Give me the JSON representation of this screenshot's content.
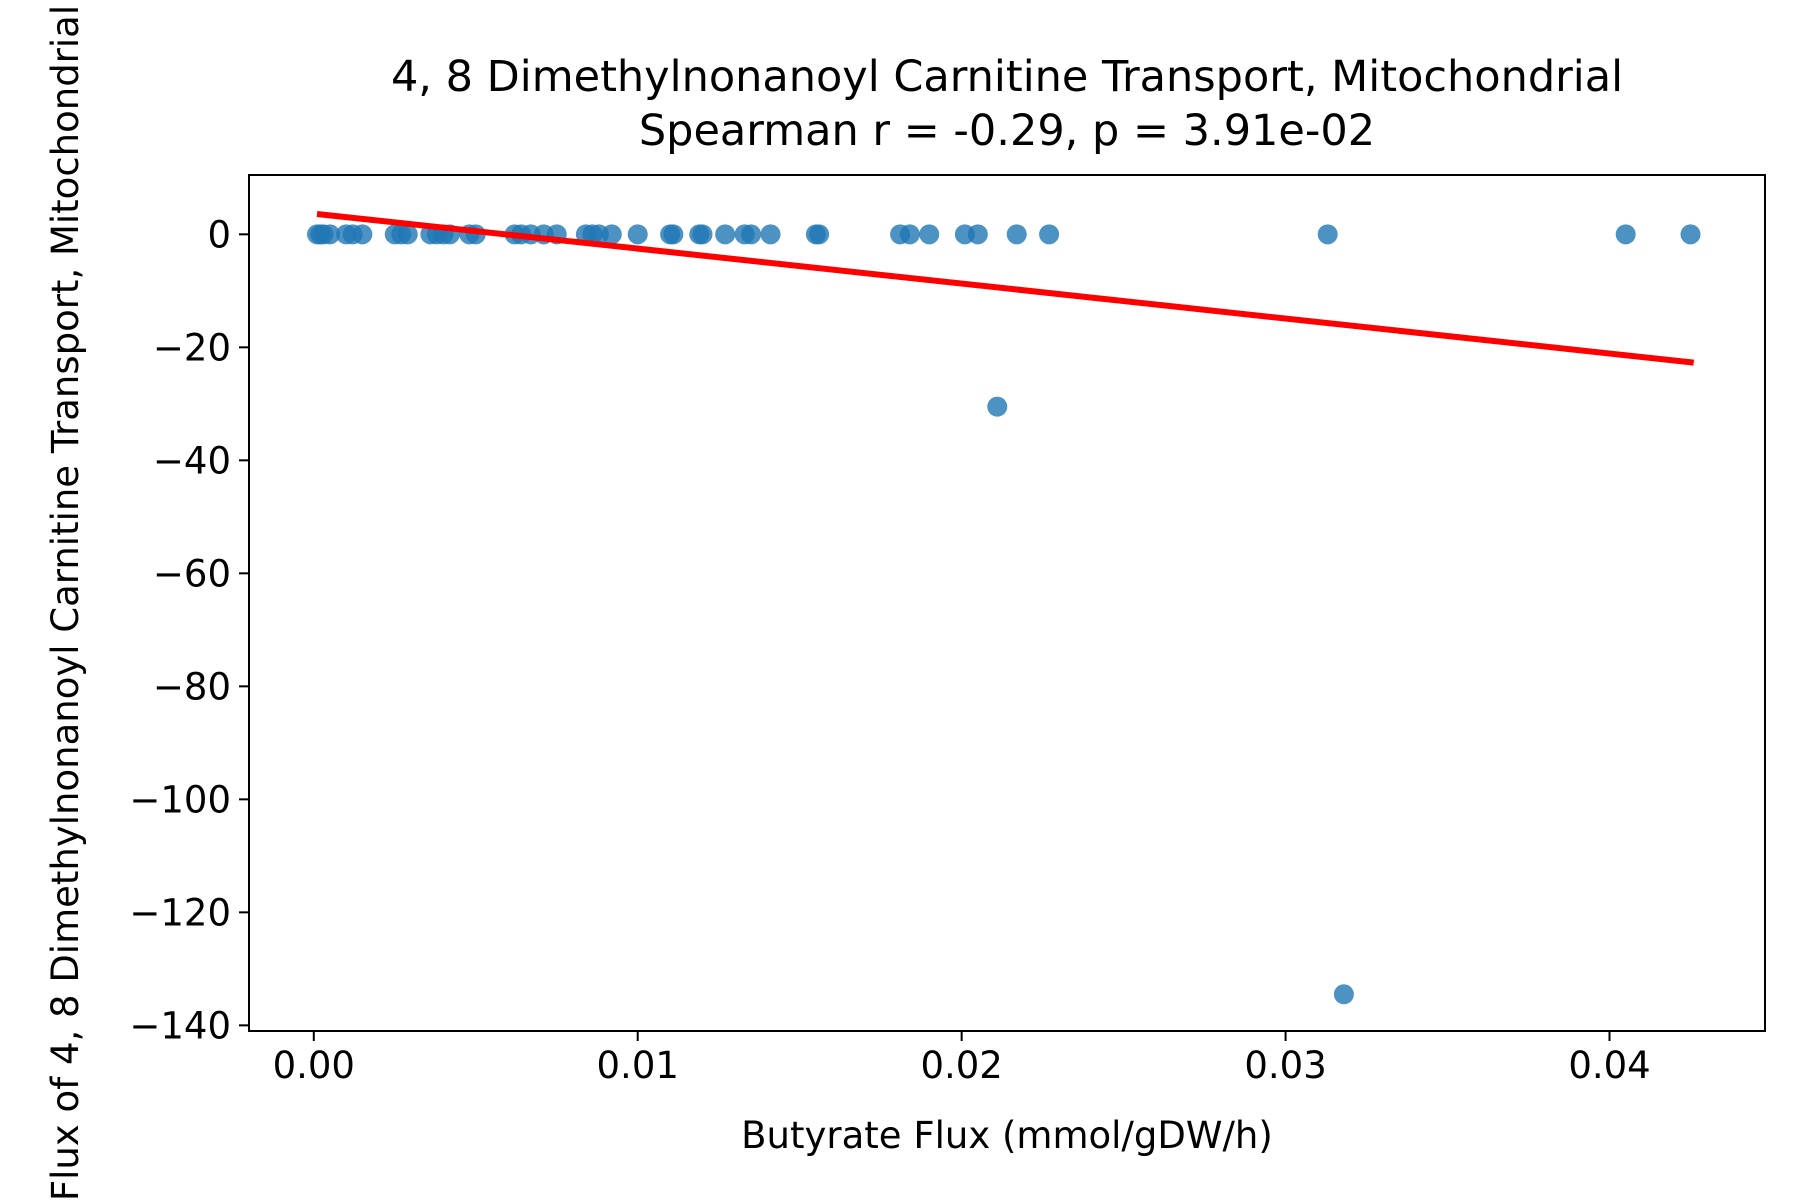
{
  "chart_data": {
    "type": "scatter",
    "title": "4, 8 Dimethylnonanoyl Carnitine Transport, Mitochondrial",
    "subtitle": "Spearman r = -0.29, p = 3.91e-02",
    "xlabel": "Butyrate Flux (mmol/gDW/h)",
    "ylabel": "Flux of 4, 8 Dimethylnonanoyl Carnitine Transport, Mitochondrial",
    "xlim": [
      -0.002,
      0.0448
    ],
    "ylim": [
      -141,
      10.5
    ],
    "x_ticks": [
      0.0,
      0.01,
      0.02,
      0.03,
      0.04
    ],
    "x_tick_labels": [
      "0.00",
      "0.01",
      "0.02",
      "0.03",
      "0.04"
    ],
    "y_ticks": [
      0,
      -20,
      -40,
      -60,
      -80,
      -100,
      -120,
      -140
    ],
    "y_tick_labels": [
      "0",
      "−20",
      "−40",
      "−60",
      "−80",
      "−100",
      "−120",
      "−140"
    ],
    "grid": false,
    "colors": {
      "points": "#1f77b4",
      "fit_line": "#ff0000"
    },
    "points": [
      {
        "x": 0.0001,
        "y": 0
      },
      {
        "x": 0.0002,
        "y": 0
      },
      {
        "x": 0.0003,
        "y": 0
      },
      {
        "x": 0.0005,
        "y": 0
      },
      {
        "x": 0.001,
        "y": 0
      },
      {
        "x": 0.0012,
        "y": 0
      },
      {
        "x": 0.0015,
        "y": 0
      },
      {
        "x": 0.0025,
        "y": 0
      },
      {
        "x": 0.0027,
        "y": 0
      },
      {
        "x": 0.0029,
        "y": 0
      },
      {
        "x": 0.0036,
        "y": 0
      },
      {
        "x": 0.0038,
        "y": 0
      },
      {
        "x": 0.004,
        "y": 0
      },
      {
        "x": 0.0042,
        "y": 0
      },
      {
        "x": 0.0048,
        "y": 0
      },
      {
        "x": 0.005,
        "y": 0
      },
      {
        "x": 0.0062,
        "y": 0
      },
      {
        "x": 0.0064,
        "y": 0
      },
      {
        "x": 0.0067,
        "y": 0
      },
      {
        "x": 0.0071,
        "y": 0
      },
      {
        "x": 0.0075,
        "y": 0
      },
      {
        "x": 0.0084,
        "y": 0
      },
      {
        "x": 0.0086,
        "y": 0
      },
      {
        "x": 0.0088,
        "y": 0
      },
      {
        "x": 0.0092,
        "y": 0
      },
      {
        "x": 0.01,
        "y": 0
      },
      {
        "x": 0.011,
        "y": 0
      },
      {
        "x": 0.0111,
        "y": 0
      },
      {
        "x": 0.0119,
        "y": 0
      },
      {
        "x": 0.012,
        "y": 0
      },
      {
        "x": 0.0127,
        "y": 0
      },
      {
        "x": 0.0133,
        "y": 0
      },
      {
        "x": 0.0135,
        "y": 0
      },
      {
        "x": 0.0141,
        "y": 0
      },
      {
        "x": 0.0155,
        "y": 0
      },
      {
        "x": 0.0156,
        "y": 0
      },
      {
        "x": 0.0181,
        "y": 0
      },
      {
        "x": 0.0184,
        "y": 0
      },
      {
        "x": 0.019,
        "y": 0
      },
      {
        "x": 0.0201,
        "y": 0
      },
      {
        "x": 0.0205,
        "y": 0
      },
      {
        "x": 0.0217,
        "y": 0
      },
      {
        "x": 0.0227,
        "y": 0
      },
      {
        "x": 0.0313,
        "y": 0
      },
      {
        "x": 0.0405,
        "y": 0
      },
      {
        "x": 0.0425,
        "y": 0
      },
      {
        "x": 0.0211,
        "y": -30.5
      },
      {
        "x": 0.0318,
        "y": -134.5
      }
    ],
    "fit_line": {
      "x": [
        0.0001,
        0.0426
      ],
      "y": [
        3.6,
        -22.7
      ]
    }
  }
}
